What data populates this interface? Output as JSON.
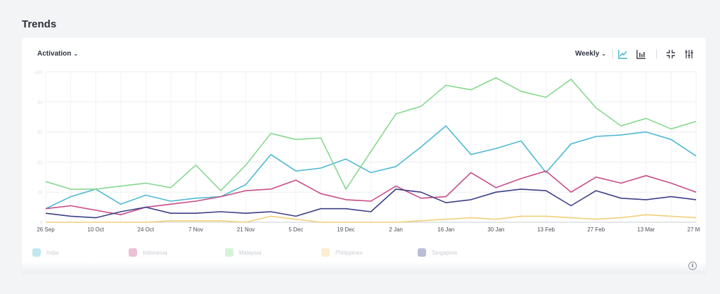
{
  "page": {
    "title": "Trends"
  },
  "toolbar": {
    "metric_label": "Activation",
    "period_label": "Weekly",
    "icons": [
      "line-chart-icon",
      "bar-chart-icon",
      "collapse-icon",
      "filter-sliders-icon"
    ],
    "accent_color": "#3ab1cc"
  },
  "info_glyph": "i",
  "chart_data": {
    "type": "line",
    "xlabel": "",
    "ylabel": "",
    "grid": true,
    "legend_position": "bottom-left",
    "x_tick_labels": [
      "26 Sep",
      "10 Oct",
      "24 Oct",
      "7 Nov",
      "21 Nov",
      "5 Dec",
      "19 Dec",
      "2 Jan",
      "16 Jan",
      "30 Jan",
      "13 Feb",
      "27 Feb",
      "13 Mar",
      "27 Mar"
    ],
    "x_points": 27,
    "ylim": [
      0,
      100
    ],
    "y_gridlines": [
      0,
      20,
      40,
      60,
      80,
      100
    ],
    "series": [
      {
        "name": "India",
        "color": "#4fb9d3",
        "values": [
          9,
          17,
          22,
          12,
          18,
          14,
          16,
          17,
          25,
          45,
          34,
          36,
          42,
          33,
          37,
          50,
          64,
          45,
          49,
          54,
          33,
          52,
          57,
          58,
          60,
          55,
          44
        ]
      },
      {
        "name": "Indonesia",
        "color": "#c84c87",
        "values": [
          9,
          11,
          8,
          5,
          10,
          12,
          14,
          17,
          21,
          22,
          28,
          19,
          15,
          14,
          24,
          16,
          17,
          33,
          23,
          29,
          34,
          20,
          30,
          26,
          31,
          26,
          20
        ]
      },
      {
        "name": "Malaysia",
        "color": "#86d98e",
        "values": [
          27,
          22,
          22,
          24,
          26,
          23,
          38,
          21,
          38,
          59,
          55,
          56,
          22,
          47,
          72,
          77,
          91,
          88,
          96,
          87,
          83,
          95,
          76,
          64,
          69,
          62,
          67
        ]
      },
      {
        "name": "Philippines",
        "color": "#f3cf7a",
        "values": [
          0,
          0,
          0,
          0,
          0,
          1,
          1,
          1,
          0,
          4,
          2,
          0,
          0,
          0,
          0,
          1,
          2,
          3,
          2,
          4,
          4,
          3,
          2,
          3,
          5,
          4,
          3
        ]
      },
      {
        "name": "Singapore",
        "color": "#3c3f87",
        "values": [
          6,
          4,
          3,
          7,
          10,
          6,
          6,
          7,
          6,
          7,
          4,
          9,
          9,
          7,
          22,
          20,
          13,
          15,
          20,
          22,
          21,
          11,
          21,
          16,
          15,
          17,
          15
        ]
      }
    ]
  }
}
